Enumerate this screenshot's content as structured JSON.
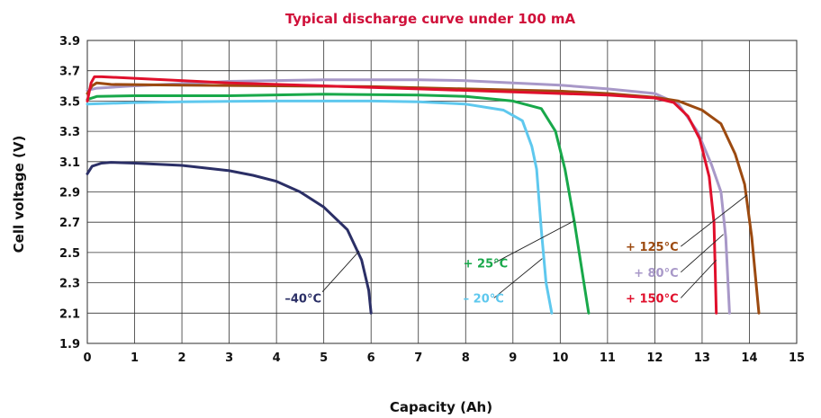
{
  "chart_data": {
    "type": "line",
    "title": "Typical discharge curve under 100 mA",
    "xlabel": "Capacity (Ah)",
    "ylabel": "Cell voltage (V)",
    "xlim": [
      0,
      15
    ],
    "ylim": [
      1.9,
      3.9
    ],
    "xticks": [
      "0",
      "1",
      "2",
      "3",
      "4",
      "5",
      "6",
      "7",
      "8",
      "9",
      "10",
      "11",
      "12",
      "13",
      "14",
      "15"
    ],
    "yticks": [
      "1.9",
      "2.1",
      "2.3",
      "2.5",
      "2.7",
      "2.9",
      "3.1",
      "3.3",
      "3.5",
      "3.7",
      "3.9"
    ],
    "grid": true,
    "title_color": "#d0103a",
    "series": [
      {
        "name": "–40°C",
        "color": "#2b2f66",
        "points": [
          [
            0,
            3.02
          ],
          [
            0.1,
            3.07
          ],
          [
            0.3,
            3.09
          ],
          [
            0.5,
            3.095
          ],
          [
            1,
            3.09
          ],
          [
            2,
            3.075
          ],
          [
            3,
            3.04
          ],
          [
            3.5,
            3.01
          ],
          [
            4,
            2.97
          ],
          [
            4.5,
            2.9
          ],
          [
            5,
            2.8
          ],
          [
            5.5,
            2.65
          ],
          [
            5.8,
            2.45
          ],
          [
            5.95,
            2.25
          ],
          [
            6.0,
            2.1
          ]
        ]
      },
      {
        "name": "– 20°C",
        "color": "#5ec8ee",
        "points": [
          [
            0,
            3.48
          ],
          [
            1,
            3.49
          ],
          [
            2,
            3.495
          ],
          [
            4,
            3.5
          ],
          [
            6,
            3.5
          ],
          [
            7,
            3.495
          ],
          [
            8,
            3.48
          ],
          [
            8.8,
            3.44
          ],
          [
            9.2,
            3.37
          ],
          [
            9.4,
            3.2
          ],
          [
            9.5,
            3.05
          ],
          [
            9.6,
            2.65
          ],
          [
            9.7,
            2.3
          ],
          [
            9.82,
            2.1
          ]
        ]
      },
      {
        "name": "+ 25°C",
        "color": "#18a84a",
        "points": [
          [
            0,
            3.51
          ],
          [
            0.2,
            3.53
          ],
          [
            1,
            3.535
          ],
          [
            3,
            3.535
          ],
          [
            5,
            3.545
          ],
          [
            7,
            3.54
          ],
          [
            8,
            3.53
          ],
          [
            9,
            3.5
          ],
          [
            9.6,
            3.45
          ],
          [
            9.9,
            3.3
          ],
          [
            10.1,
            3.05
          ],
          [
            10.3,
            2.7
          ],
          [
            10.45,
            2.4
          ],
          [
            10.6,
            2.1
          ]
        ]
      },
      {
        "name": "+ 80°C",
        "color": "#a898c8",
        "points": [
          [
            0,
            3.57
          ],
          [
            0.2,
            3.585
          ],
          [
            1,
            3.6
          ],
          [
            3,
            3.63
          ],
          [
            5,
            3.64
          ],
          [
            7,
            3.64
          ],
          [
            8,
            3.635
          ],
          [
            10,
            3.605
          ],
          [
            11,
            3.58
          ],
          [
            12,
            3.55
          ],
          [
            12.5,
            3.48
          ],
          [
            12.9,
            3.3
          ],
          [
            13.2,
            3.08
          ],
          [
            13.4,
            2.9
          ],
          [
            13.5,
            2.6
          ],
          [
            13.58,
            2.1
          ]
        ]
      },
      {
        "name": "+ 125°C",
        "color": "#9c4a10",
        "points": [
          [
            0,
            3.55
          ],
          [
            0.1,
            3.6
          ],
          [
            0.2,
            3.62
          ],
          [
            0.5,
            3.61
          ],
          [
            2,
            3.605
          ],
          [
            4,
            3.6
          ],
          [
            6,
            3.595
          ],
          [
            8,
            3.58
          ],
          [
            10,
            3.565
          ],
          [
            11,
            3.55
          ],
          [
            12,
            3.525
          ],
          [
            12.5,
            3.5
          ],
          [
            13,
            3.44
          ],
          [
            13.4,
            3.35
          ],
          [
            13.7,
            3.15
          ],
          [
            13.9,
            2.95
          ],
          [
            14.05,
            2.6
          ],
          [
            14.2,
            2.1
          ]
        ]
      },
      {
        "name": "+ 150°C",
        "color": "#e0102c",
        "points": [
          [
            0,
            3.5
          ],
          [
            0.08,
            3.62
          ],
          [
            0.15,
            3.66
          ],
          [
            0.3,
            3.66
          ],
          [
            1,
            3.65
          ],
          [
            3,
            3.62
          ],
          [
            5,
            3.6
          ],
          [
            7,
            3.58
          ],
          [
            9,
            3.56
          ],
          [
            11,
            3.54
          ],
          [
            12,
            3.52
          ],
          [
            12.4,
            3.49
          ],
          [
            12.7,
            3.4
          ],
          [
            12.95,
            3.25
          ],
          [
            13.15,
            3.0
          ],
          [
            13.25,
            2.7
          ],
          [
            13.3,
            2.1
          ]
        ]
      }
    ],
    "annotations": [
      {
        "text": "–40°C",
        "color": "#2b2f66",
        "anchor": "end",
        "label_at": [
          4.95,
          2.2
        ],
        "leader": [
          [
            4.97,
            2.24
          ],
          [
            5.75,
            2.51
          ]
        ]
      },
      {
        "text": "+ 25°C",
        "color": "#18a84a",
        "anchor": "start",
        "label_at": [
          7.95,
          2.43
        ],
        "leader": [
          [
            8.6,
            2.43
          ],
          [
            10.3,
            2.71
          ]
        ]
      },
      {
        "text": "– 20°C",
        "color": "#5ec8ee",
        "anchor": "start",
        "label_at": [
          7.95,
          2.2
        ],
        "leader": [
          [
            8.6,
            2.2
          ],
          [
            9.62,
            2.46
          ]
        ]
      },
      {
        "text": "+ 125°C",
        "color": "#9c4a10",
        "anchor": "end",
        "label_at": [
          12.5,
          2.54
        ],
        "leader": [
          [
            12.55,
            2.54
          ],
          [
            13.95,
            2.88
          ]
        ]
      },
      {
        "text": "+ 80°C",
        "color": "#a898c8",
        "anchor": "end",
        "label_at": [
          12.5,
          2.37
        ],
        "leader": [
          [
            12.55,
            2.37
          ],
          [
            13.45,
            2.62
          ]
        ]
      },
      {
        "text": "+ 150°C",
        "color": "#e0102c",
        "anchor": "end",
        "label_at": [
          12.5,
          2.2
        ],
        "leader": [
          [
            12.55,
            2.2
          ],
          [
            13.3,
            2.45
          ]
        ]
      }
    ]
  }
}
